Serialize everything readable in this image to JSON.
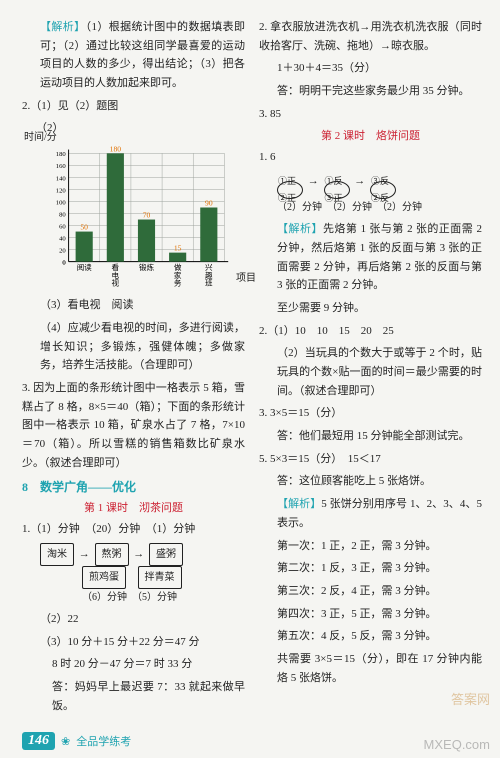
{
  "left": {
    "p1a": "【解析】",
    "p1b": "（1）根据统计图中的数据填表即可；（2）通过比较这组同学最喜爱的运动项目的人数的多少，得出结论；（3）把各运动项目的人数加起来即可。",
    "q2": "2.（1）见（2）题图",
    "chart": {
      "ylabel": "时间/分",
      "xlabel": "项目",
      "ymax": 180,
      "ystep": 20,
      "cats": [
        "阅读",
        "看电视",
        "锻炼",
        "做家务",
        "兴趣班"
      ],
      "vals": [
        50,
        180,
        70,
        15,
        90
      ],
      "bar_color": "#2f6b3a",
      "grid_color": "#9aa09a",
      "value_color": "#e07000"
    },
    "p3": "（3）看电视　阅读",
    "p4": "（4）应减少看电视的时间，多进行阅读，增长知识；多锻炼，强健体魄；多做家务，培养生活技能。（合理即可）",
    "q3": "3. 因为上面的条形统计图中一格表示 5 箱，雪糕占了 8 格，8×5＝40（箱）；下面的条形统计图中一格表示 10 箱，矿泉水占了 7 格，7×10＝70（箱）。所以雪糕的销售箱数比矿泉水少。（叙述合理即可）",
    "title8": "8　数学广角——优化",
    "sub1": "第 1 课时　沏茶问题",
    "q1line": "1.（1）分钟　（20）分钟　（1）分钟",
    "flow": {
      "a": "淘米",
      "b": "熬粥",
      "c": "盛粥",
      "d": "煎鸡蛋",
      "e": "拌青菜",
      "t1": "（6）分钟",
      "t2": "（5）分钟"
    },
    "p22": "（2）22",
    "p310": "（3）10 分＋15 分＋22 分＝47 分",
    "p_time": "8 时 20 分－47 分＝7 时 33 分",
    "p_ans": "答：妈妈早上最迟要 7：33 就起来做早饭。"
  },
  "right": {
    "q2a": "2. 拿衣服放进洗衣机→用洗衣机洗衣服（同时收拾客厅、洗碗、拖地）→晾衣服。",
    "q2b": "1＋30＋4＝35（分）",
    "q2c": "答：明明干完这些家务最少用 35 分钟。",
    "q3": "3. 85",
    "sub2": "第 2 课时　烙饼问题",
    "q1": "1. 6",
    "circle_labels": [
      "①正②正",
      "①反③正",
      "③反②反"
    ],
    "circle_times": "（2）分钟　（2）分钟　（2）分钟",
    "anal_a": "【解析】",
    "anal_b": "先烙第 1 张与第 2 张的正面需 2 分钟，然后烙第 1 张的反面与第 3 张的正面需要 2 分钟，再后烙第 2 张的反面与第 3 张的正面需 2 分钟。",
    "p_least": "至少需要 9 分钟。",
    "q2r": "2.（1）10　10　15　20　25",
    "q2r2": "（2）当玩具的个数大于或等于 2 个时，贴玩具的个数×贴一面的时间＝最少需要的时间。（叙述合理即可）",
    "q3r": "3. 3×5＝15（分）",
    "q3r2": "答：他们最短用 15 分钟能全部测试完。",
    "q5": "5. 5×3＝15（分）　15＜17",
    "q5b": "答：这位顾客能吃上 5 张烙饼。",
    "anal2a": "【解析】",
    "anal2b": "5 张饼分别用序号 1、2、3、4、5 表示。",
    "steps": [
      "第一次：1 正，2 正，需 3 分钟。",
      "第二次：1 反，3 正，需 3 分钟。",
      "第三次：2 反，4 正，需 3 分钟。",
      "第四次：3 正，5 正，需 3 分钟。",
      "第五次：4 反，5 反，需 3 分钟。"
    ],
    "sum": "共需要 3×5＝15（分），即在 17 分钟内能烙 5 张烙饼。"
  },
  "footer": {
    "num": "146",
    "text": "全品学练考"
  },
  "wm1": "答案网",
  "wm2": "MXEQ.com"
}
